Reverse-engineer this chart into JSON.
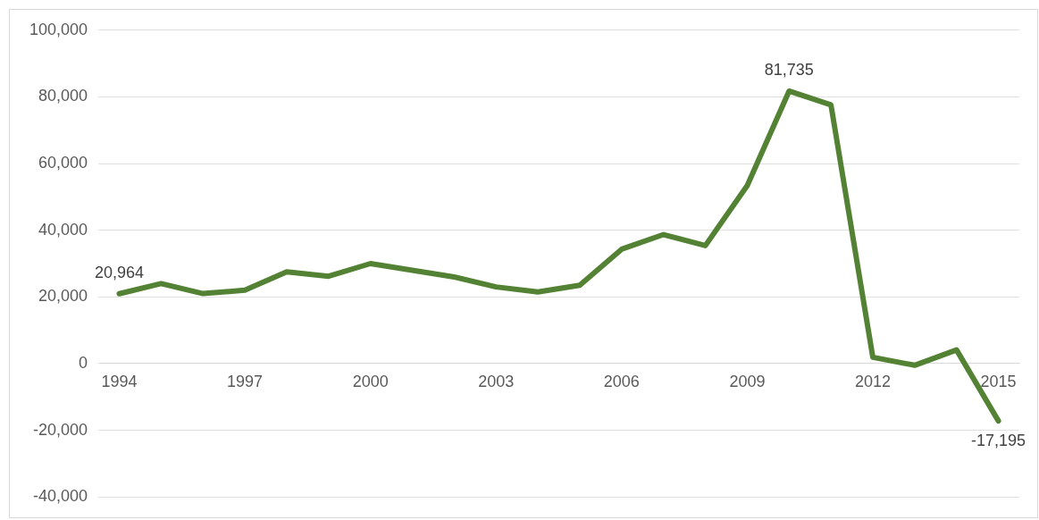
{
  "chart_data": {
    "type": "line",
    "categories": [
      "1994",
      null,
      null,
      "1997",
      null,
      null,
      "2000",
      null,
      null,
      "2003",
      null,
      null,
      "2006",
      null,
      null,
      "2009",
      null,
      null,
      "2012",
      null,
      null,
      "2015"
    ],
    "series": [
      {
        "color": "#548235",
        "values": [
          20964,
          24000,
          21000,
          22000,
          27500,
          26200,
          30000,
          28000,
          26000,
          23000,
          21500,
          23500,
          34300,
          38700,
          35400,
          53400,
          81735,
          77600,
          1900,
          -500,
          4100,
          -17195
        ],
        "value_labels": [
          "20,964",
          null,
          null,
          null,
          null,
          null,
          null,
          null,
          null,
          null,
          null,
          null,
          null,
          null,
          null,
          null,
          "81,735",
          null,
          null,
          null,
          null,
          "-17,195"
        ]
      }
    ],
    "ylim": [
      -40000,
      100000
    ],
    "yticks": [
      {
        "value": -40000,
        "label": "-40,000"
      },
      {
        "value": -20000,
        "label": "-20,000"
      },
      {
        "value": 0,
        "label": "0"
      },
      {
        "value": 20000,
        "label": "20,000"
      },
      {
        "value": 40000,
        "label": "40,000"
      },
      {
        "value": 60000,
        "label": "60,000"
      },
      {
        "value": 80000,
        "label": "80,000"
      },
      {
        "value": 100000,
        "label": "100,000"
      }
    ],
    "grid": "y",
    "legend": false,
    "marker": "none",
    "line_style": "solid"
  }
}
